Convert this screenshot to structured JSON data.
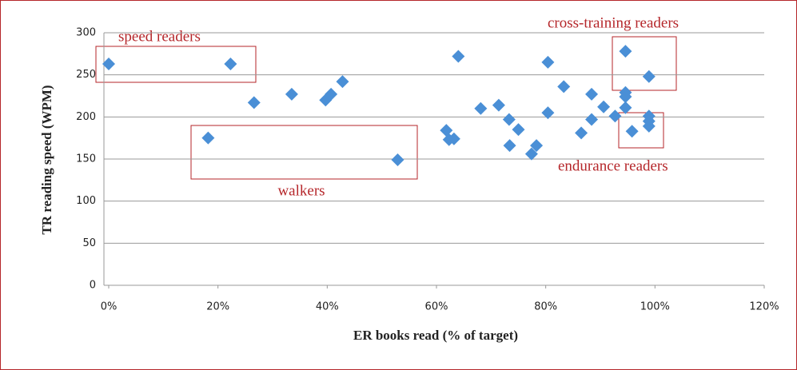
{
  "chart_data": {
    "type": "scatter",
    "xlabel": "ER books read (% of target)",
    "ylabel": "TR reading speed (WPM)",
    "annotations": [
      "speed readers",
      "cross-training readers",
      "walkers",
      "endurance readers"
    ],
    "xlim": [
      0,
      120
    ],
    "xticks": [
      {
        "value": 0,
        "label": "0%"
      },
      {
        "value": 20,
        "label": "20%"
      },
      {
        "value": 40,
        "label": "40%"
      },
      {
        "value": 60,
        "label": "60%"
      },
      {
        "value": 80,
        "label": "80%"
      },
      {
        "value": 100,
        "label": "100%"
      },
      {
        "value": 120,
        "label": "120%"
      }
    ],
    "ylim": [
      0,
      300
    ],
    "yticks": [
      0,
      50,
      100,
      150,
      200,
      250,
      300
    ],
    "grid": true,
    "color": "#4a8fd6",
    "x": [
      0,
      22.3,
      26.6,
      18.2,
      33.5,
      39.7,
      40.7,
      42.8,
      52.9,
      61.8,
      62.3,
      63.2,
      64,
      68.1,
      71.4,
      73.3,
      73.4,
      75,
      77.4,
      78.3,
      80.4,
      80.4,
      83.3,
      86.5,
      88.4,
      88.4,
      90.6,
      92.7,
      94.6,
      94.6,
      94.6,
      94.6,
      95.8,
      98.9,
      98.9,
      98.9,
      98.9
    ],
    "values": [
      263,
      263,
      217,
      175,
      227,
      220,
      227,
      242,
      149,
      184,
      173,
      174,
      272,
      210,
      214,
      197,
      166,
      185,
      156,
      166,
      265,
      205,
      236,
      181,
      227,
      197,
      212,
      201,
      278,
      229,
      224,
      211,
      183,
      248,
      201,
      195,
      189
    ]
  }
}
